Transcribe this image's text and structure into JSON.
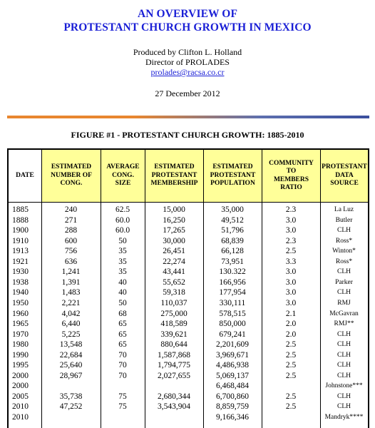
{
  "header": {
    "title_line1": "AN OVERVIEW OF",
    "title_line2": "PROTESTANT CHURCH GROWTH IN MEXICO",
    "credit_line1": "Produced by Clifton L. Holland",
    "credit_line2": "Director of PROLADES",
    "email": "prolades@racsa.co.cr",
    "date": "27 December 2012"
  },
  "figure_title": "FIGURE #1 - PROTESTANT CHURCH GROWTH:  1885-2010",
  "table": {
    "columns": [
      "DATE",
      "ESTIMATED\nNUMBER OF\nCONG.",
      "AVERAGE\nCONG.\nSIZE",
      "ESTIMATED\nPROTESTANT\nMEMBERSHIP",
      "ESTIMATED\nPROTESTANT\nPOPULATION",
      "COMMUNITY\nTO\nMEMBERS\nRATIO",
      "PROTESTANT\nDATA\nSOURCE"
    ],
    "rows": [
      [
        "1885",
        "240",
        "62.5",
        "15,000",
        "35,000",
        "2.3",
        "La Luz"
      ],
      [
        "1888",
        "271",
        "60.0",
        "16,250",
        "49,512",
        "3.0",
        "Butler"
      ],
      [
        "1900",
        "288",
        "60.0",
        "17,265",
        "51,796",
        "3.0",
        "CLH"
      ],
      [
        "1910",
        "600",
        "50",
        "30,000",
        "68,839",
        "2.3",
        "Ross*"
      ],
      [
        "1913",
        "756",
        "35",
        "26,451",
        "66,128",
        "2.5",
        "Winton*"
      ],
      [
        "1921",
        "636",
        "35",
        "22,274",
        "73,951",
        "3.3",
        "Ross*"
      ],
      [
        "1930",
        "1,241",
        "35",
        "43,441",
        "130.322",
        "3.0",
        "CLH"
      ],
      [
        "1938",
        "1,391",
        "40",
        "55,652",
        "166,956",
        "3.0",
        "Parker"
      ],
      [
        "1940",
        "1,483",
        "40",
        "59,318",
        "177,954",
        "3.0",
        "CLH"
      ],
      [
        "1950",
        "2,221",
        "50",
        "110,037",
        "330,111",
        "3.0",
        "RMJ"
      ],
      [
        "1960",
        "4,042",
        "68",
        "275,000",
        "578,515",
        "2.1",
        "McGavran"
      ],
      [
        "1965",
        "6,440",
        "65",
        "418,589",
        "850,000",
        "2.0",
        "RMJ**"
      ],
      [
        "1970",
        "5,225",
        "65",
        "339,621",
        "679,241",
        "2.0",
        "CLH"
      ],
      [
        "1980",
        "13,548",
        "65",
        "880,644",
        "2,201,609",
        "2.5",
        "CLH"
      ],
      [
        "1990",
        "22,684",
        "70",
        "1,587,868",
        "3,969,671",
        "2.5",
        "CLH"
      ],
      [
        "1995",
        "25,640",
        "70",
        "1,794,775",
        "4,486,938",
        "2.5",
        "CLH"
      ],
      [
        "2000",
        "28,967",
        "70",
        "2,027,655",
        "5,069,137",
        "2.5",
        "CLH"
      ],
      [
        "2000",
        "",
        "",
        "",
        "6,468,484",
        "",
        "Johnstone***"
      ],
      [
        "2005",
        "35,738",
        "75",
        "2,680,344",
        "6,700,860",
        "2.5",
        "CLH"
      ],
      [
        "2010",
        "47,252",
        "75",
        "3,543,904",
        "8,859,759",
        "2.5",
        "CLH"
      ],
      [
        "2010",
        "",
        "",
        "",
        "9,166,346",
        "",
        "Mandryk****"
      ]
    ]
  }
}
